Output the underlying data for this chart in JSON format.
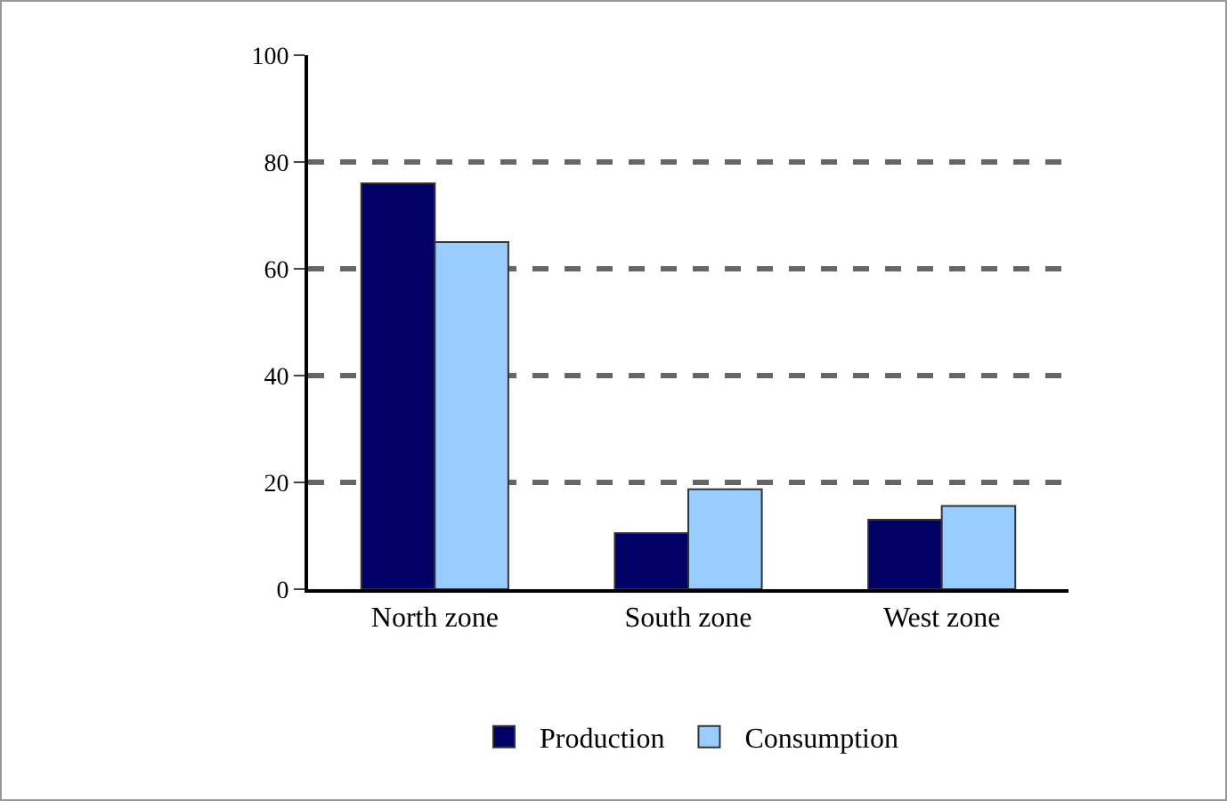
{
  "chart_data": {
    "type": "bar",
    "categories": [
      "North zone",
      "South zone",
      "West zone"
    ],
    "series": [
      {
        "name": "Production",
        "color": "#000066",
        "values": [
          76,
          10.5,
          13
        ]
      },
      {
        "name": "Consumption",
        "color": "#99ccff",
        "values": [
          65,
          18.7,
          15.6
        ]
      }
    ],
    "ylim": [
      0,
      100
    ],
    "yticks": [
      0,
      20,
      40,
      60,
      80,
      100
    ],
    "grid": "y",
    "legend": "bottom"
  }
}
